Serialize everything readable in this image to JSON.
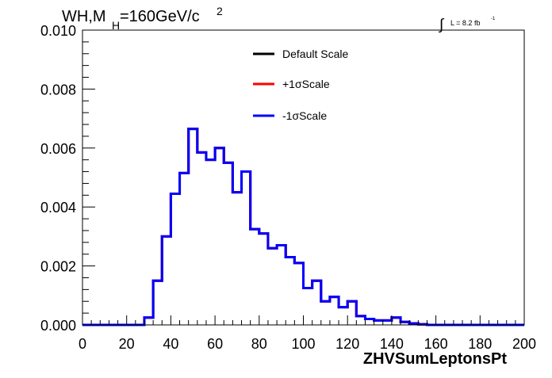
{
  "header": {
    "title_main": "WH,M",
    "title_sub": "H",
    "title_value": "=160GeV/c",
    "title_sup": "2",
    "lumi_integral": "∫",
    "lumi_text": "L = 8.2 fb",
    "lumi_sup": "-1"
  },
  "chart_data": {
    "type": "line",
    "style": "step-histogram",
    "title": "",
    "xlabel": "ZHVSumLeptonsPt",
    "ylabel": "",
    "xlim": [
      0,
      200
    ],
    "ylim": [
      0,
      0.01
    ],
    "x_ticks": [
      "0",
      "20",
      "40",
      "60",
      "80",
      "100",
      "120",
      "140",
      "160",
      "180",
      "200"
    ],
    "y_ticks": [
      "0.000",
      "0.002",
      "0.004",
      "0.006",
      "0.008",
      "0.010"
    ],
    "grid": false,
    "legend_position": "top-center",
    "bin_width": 4,
    "bin_edges_start": 0,
    "series": [
      {
        "name": "Default Scale",
        "color": "#000000",
        "values": [
          0,
          0,
          0,
          0,
          0,
          0,
          0,
          0.00025,
          0.0015,
          0.003,
          0.00445,
          0.00515,
          0.00665,
          0.00585,
          0.0056,
          0.006,
          0.0055,
          0.0045,
          0.0052,
          0.00325,
          0.0031,
          0.0026,
          0.0027,
          0.0023,
          0.0021,
          0.00125,
          0.0015,
          0.0008,
          0.00095,
          0.0006,
          0.0008,
          0.0003,
          0.0002,
          0.00015,
          0.00015,
          0.00025,
          0.0001,
          5e-05,
          2e-05,
          0,
          0,
          0,
          0,
          0,
          0,
          0,
          0,
          0,
          0,
          0
        ]
      },
      {
        "name": "+1σScale",
        "color": "#ff0000",
        "values": [
          0,
          0,
          0,
          0,
          0,
          0,
          0,
          0.00025,
          0.0015,
          0.003,
          0.00445,
          0.00515,
          0.00665,
          0.00585,
          0.0056,
          0.006,
          0.0055,
          0.0045,
          0.0052,
          0.00325,
          0.0031,
          0.0026,
          0.0027,
          0.0023,
          0.0021,
          0.00125,
          0.0015,
          0.0008,
          0.00095,
          0.0006,
          0.0008,
          0.0003,
          0.0002,
          0.00015,
          0.00015,
          0.00025,
          0.0001,
          5e-05,
          2e-05,
          0,
          0,
          0,
          0,
          0,
          0,
          0,
          0,
          0,
          0,
          0
        ]
      },
      {
        "name": "-1σScale",
        "color": "#0000ff",
        "values": [
          0,
          0,
          0,
          0,
          0,
          0,
          0,
          0.00025,
          0.0015,
          0.003,
          0.00445,
          0.00515,
          0.00665,
          0.00585,
          0.0056,
          0.006,
          0.0055,
          0.0045,
          0.0052,
          0.00325,
          0.0031,
          0.0026,
          0.0027,
          0.0023,
          0.0021,
          0.00125,
          0.0015,
          0.0008,
          0.00095,
          0.0006,
          0.0008,
          0.0003,
          0.0002,
          0.00015,
          0.00015,
          0.00025,
          0.0001,
          5e-05,
          2e-05,
          0,
          0,
          0,
          0,
          0,
          0,
          0,
          0,
          0,
          0,
          0
        ]
      }
    ]
  }
}
